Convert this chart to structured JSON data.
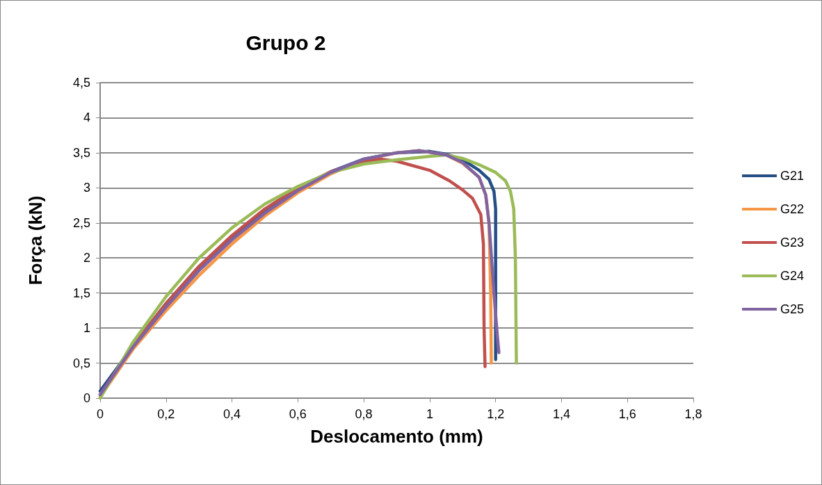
{
  "chart_data": {
    "type": "line",
    "title": "Grupo 2",
    "xlabel": "Deslocamento (mm)",
    "ylabel": "Força (kN)",
    "xlim": [
      0,
      1.8
    ],
    "xticks": [
      {
        "value": 0,
        "label": "0"
      },
      {
        "value": 0.2,
        "label": "0,2"
      },
      {
        "value": 0.4,
        "label": "0,4"
      },
      {
        "value": 0.6,
        "label": "0,6"
      },
      {
        "value": 0.8,
        "label": "0,8"
      },
      {
        "value": 1,
        "label": "1"
      },
      {
        "value": 1.2,
        "label": "1,2"
      },
      {
        "value": 1.4,
        "label": "1,4"
      },
      {
        "value": 1.6,
        "label": "1,6"
      },
      {
        "value": 1.8,
        "label": "1,8"
      }
    ],
    "ylim": [
      0,
      4.5
    ],
    "yticks": [
      {
        "value": 0,
        "label": "0"
      },
      {
        "value": 0.5,
        "label": "0,5"
      },
      {
        "value": 1,
        "label": "1"
      },
      {
        "value": 1.5,
        "label": "1,5"
      },
      {
        "value": 2,
        "label": "2"
      },
      {
        "value": 2.5,
        "label": "2,5"
      },
      {
        "value": 3,
        "label": "3"
      },
      {
        "value": 3.5,
        "label": "3,5"
      },
      {
        "value": 4,
        "label": "4"
      },
      {
        "value": 4.5,
        "label": "4,5"
      }
    ],
    "grid": "y",
    "legend": "right",
    "marker": "none",
    "line_style": "solid",
    "series": [
      {
        "name": "G21",
        "color": "#254f85",
        "x": [
          0,
          0.05,
          0.1,
          0.2,
          0.3,
          0.4,
          0.5,
          0.6,
          0.7,
          0.8,
          0.9,
          1.0,
          1.05,
          1.1,
          1.15,
          1.18,
          1.195,
          1.2,
          1.2,
          1.2
        ],
        "values": [
          0.1,
          0.42,
          0.75,
          1.35,
          1.87,
          2.3,
          2.67,
          2.98,
          3.23,
          3.41,
          3.5,
          3.52,
          3.48,
          3.4,
          3.25,
          3.12,
          2.95,
          2.7,
          1.5,
          0.55
        ]
      },
      {
        "name": "G22",
        "color": "#f79646",
        "x": [
          0,
          0.1,
          0.2,
          0.3,
          0.4,
          0.5,
          0.6,
          0.7,
          0.8,
          0.9,
          0.97,
          1.05,
          1.1,
          1.15,
          1.17,
          1.18,
          1.185,
          1.187
        ],
        "values": [
          0.02,
          0.7,
          1.25,
          1.75,
          2.2,
          2.6,
          2.93,
          3.2,
          3.4,
          3.5,
          3.53,
          3.47,
          3.35,
          3.15,
          2.9,
          2.5,
          1.5,
          0.5
        ]
      },
      {
        "name": "G23",
        "color": "#c0504d",
        "x": [
          0,
          0.1,
          0.2,
          0.3,
          0.4,
          0.5,
          0.6,
          0.7,
          0.8,
          0.85,
          0.9,
          1.0,
          1.06,
          1.1,
          1.13,
          1.155,
          1.163,
          1.165,
          1.168
        ],
        "values": [
          0.05,
          0.75,
          1.35,
          1.88,
          2.32,
          2.7,
          3.0,
          3.23,
          3.38,
          3.41,
          3.38,
          3.25,
          3.1,
          2.97,
          2.85,
          2.62,
          2.2,
          1.0,
          0.45
        ]
      },
      {
        "name": "G24",
        "color": "#9bbb59",
        "x": [
          0,
          0.1,
          0.2,
          0.3,
          0.4,
          0.5,
          0.6,
          0.7,
          0.8,
          0.9,
          1.0,
          1.05,
          1.1,
          1.15,
          1.2,
          1.23,
          1.245,
          1.255,
          1.26,
          1.262,
          1.263
        ],
        "values": [
          0,
          0.8,
          1.45,
          2.0,
          2.43,
          2.77,
          3.02,
          3.22,
          3.34,
          3.4,
          3.45,
          3.47,
          3.42,
          3.33,
          3.22,
          3.1,
          2.95,
          2.7,
          2.0,
          1.0,
          0.5
        ]
      },
      {
        "name": "G25",
        "color": "#8064a2",
        "x": [
          0,
          0.1,
          0.2,
          0.3,
          0.4,
          0.5,
          0.6,
          0.7,
          0.8,
          0.9,
          0.97,
          1.05,
          1.1,
          1.15,
          1.17,
          1.18,
          1.195,
          1.205,
          1.21
        ],
        "values": [
          0.05,
          0.73,
          1.3,
          1.82,
          2.26,
          2.64,
          2.96,
          3.22,
          3.41,
          3.5,
          3.53,
          3.47,
          3.36,
          3.15,
          2.9,
          2.5,
          1.5,
          0.9,
          0.65
        ]
      }
    ]
  }
}
